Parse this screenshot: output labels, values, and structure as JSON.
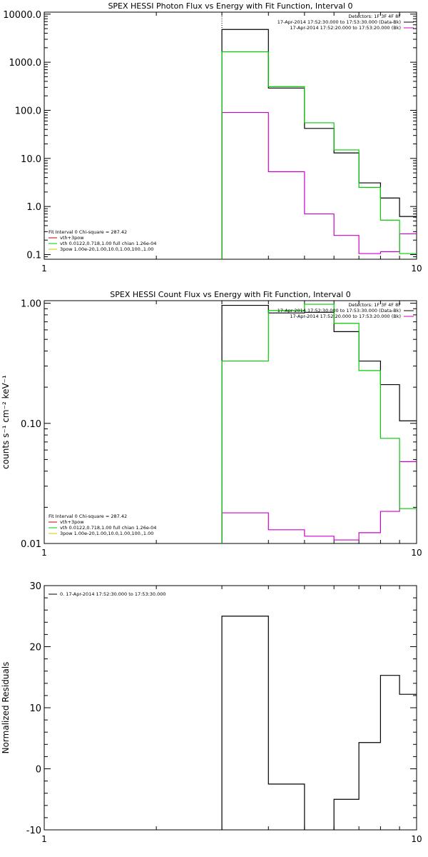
{
  "chart_data": [
    {
      "type": "line",
      "title": "SPEX HESSI Photon Flux vs Energy with Fit Function, Interval 0",
      "xscale": "log",
      "yscale": "log",
      "xlim": [
        1,
        10
      ],
      "ylim": [
        0.08,
        11000
      ],
      "xticks": [
        {
          "v": 1,
          "label": "1"
        },
        {
          "v": 10,
          "label": "10"
        }
      ],
      "yticks": [
        {
          "v": 0.1,
          "label": "0.1"
        },
        {
          "v": 1,
          "label": "1.0"
        },
        {
          "v": 10,
          "label": "10.0"
        },
        {
          "v": 100,
          "label": "100.0"
        },
        {
          "v": 1000,
          "label": "1000.0"
        },
        {
          "v": 10000,
          "label": "10000.0"
        }
      ],
      "vline": 3,
      "edges": [
        3,
        4,
        5,
        6,
        7,
        8,
        9,
        10
      ],
      "series": [
        {
          "name": "17-Apr-2014 17:52:30.000 to 17:53:30.000 (Data-Bk)",
          "color": "#000000",
          "values": [
            4800,
            290,
            42,
            13,
            3.1,
            1.5,
            0.62
          ]
        },
        {
          "name": "17-Apr-2014 17:52:20.000 to 17:53:20.000 (Bk)",
          "color": "#cc00cc",
          "values": [
            90,
            5.3,
            0.7,
            0.25,
            0.105,
            0.115,
            0.27
          ]
        },
        {
          "name": "vth+3pow",
          "color": "#00cc00",
          "values": [
            1650,
            310,
            55,
            15,
            2.5,
            0.52,
            0.105
          ]
        }
      ],
      "legend_top": {
        "heading": "Detectors: 1F 3F 4F 8F",
        "entries": [
          {
            "label": "17-Apr-2014 17:52:30.000 to 17:53:30.000 (Data-Bk)",
            "color": "#000000"
          },
          {
            "label": "17-Apr-2014 17:52:20.000 to 17:53:20.000 (Bk)",
            "color": "#cc00cc"
          }
        ]
      },
      "legend_bottom": {
        "heading": "Fit Interval 0   Chi-square = 287.42",
        "entries": [
          {
            "label": "vth+3pow",
            "color": "#cc0000"
          },
          {
            "label": "vth 0.0122,0.718,1.00   full chian 1.26e-04",
            "color": "#00cc00"
          },
          {
            "label": "3pow 1.00e-20,1.00,10.0,1.00,100.,1.00",
            "color": "#cccc00"
          }
        ]
      }
    },
    {
      "type": "line",
      "title": "SPEX HESSI Count Flux vs Energy with Fit Function, Interval 0",
      "ylabel": "counts s⁻¹ cm⁻² keV⁻¹",
      "xscale": "log",
      "yscale": "log",
      "xlim": [
        1,
        10
      ],
      "ylim": [
        0.01,
        1.05
      ],
      "xticks": [
        {
          "v": 1,
          "label": "1"
        },
        {
          "v": 10,
          "label": "10"
        }
      ],
      "yticks": [
        {
          "v": 0.01,
          "label": "0.01"
        },
        {
          "v": 0.1,
          "label": "0.10"
        },
        {
          "v": 1,
          "label": "1.00"
        }
      ],
      "vline": 3,
      "edges": [
        3,
        4,
        5,
        6,
        7,
        8,
        9,
        10
      ],
      "series": [
        {
          "name": "17-Apr-2014 17:52:30.000 to 17:53:30.000 (Data-Bk)",
          "color": "#000000",
          "values": [
            0.96,
            0.83,
            0.84,
            0.58,
            0.33,
            0.21,
            0.105
          ]
        },
        {
          "name": "17-Apr-2014 17:52:20.000 to 17:53:20.000 (Bk)",
          "color": "#cc00cc",
          "values": [
            0.018,
            0.013,
            0.0115,
            0.0107,
            0.0123,
            0.0185,
            0.048
          ]
        },
        {
          "name": "vth+3pow",
          "color": "#00cc00",
          "values": [
            0.33,
            0.87,
            0.98,
            0.68,
            0.275,
            0.075,
            0.0195
          ]
        }
      ],
      "legend_top": {
        "heading": "Detectors: 1F 3F 4F 8F",
        "entries": [
          {
            "label": "17-Apr-2014 17:52:30.000 to 17:53:30.000 (Data-Bk)",
            "color": "#000000"
          },
          {
            "label": "17-Apr-2014 17:52:20.000 to 17:53:20.000 (Bk)",
            "color": "#cc00cc"
          }
        ]
      },
      "legend_bottom": {
        "heading": "Fit Interval 0   Chi-square = 287.42",
        "entries": [
          {
            "label": "vth+3pow",
            "color": "#cc0000"
          },
          {
            "label": "vth 0.0122,0.718,1.00   full chian 1.26e-04",
            "color": "#00cc00"
          },
          {
            "label": "3pow 1.00e-20,1.00,10.0,1.00,100.,1.00",
            "color": "#cccc00"
          }
        ]
      }
    },
    {
      "type": "line",
      "ylabel": "Normalized Residuals",
      "xscale": "log",
      "yscale": "linear",
      "xlim": [
        1,
        10
      ],
      "ylim": [
        -10,
        30
      ],
      "xticks": [
        {
          "v": 1,
          "label": "1"
        },
        {
          "v": 10,
          "label": "10"
        }
      ],
      "yticks": [
        {
          "v": -10,
          "label": "-10"
        },
        {
          "v": 0,
          "label": "0"
        },
        {
          "v": 10,
          "label": "10"
        },
        {
          "v": 20,
          "label": "20"
        },
        {
          "v": 30,
          "label": "30"
        }
      ],
      "edges": [
        3,
        4,
        5,
        6,
        7,
        8,
        9,
        10
      ],
      "series": [
        {
          "name": "0. 17-Apr-2014 17:52:30.000 to 17:53:30.000",
          "color": "#000000",
          "values": [
            25,
            -2.5,
            -10.3,
            -5.0,
            4.3,
            15.3,
            12.2
          ]
        }
      ],
      "legend_top": {
        "heading": "",
        "entries": [
          {
            "label": "0. 17-Apr-2014 17:52:30.000 to 17:53:30.000",
            "color": "#000000"
          }
        ]
      }
    }
  ]
}
